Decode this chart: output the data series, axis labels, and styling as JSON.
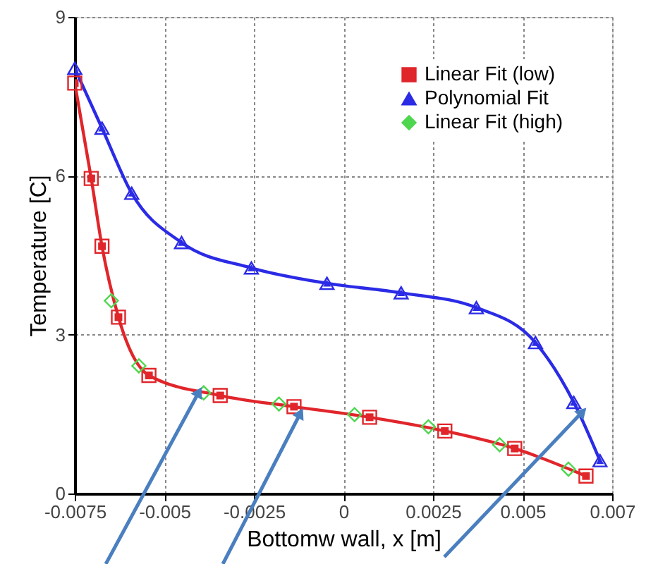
{
  "chart_data": {
    "type": "line",
    "xlabel": "Bottomw wall, x [m]",
    "ylabel": "Temperature [C]",
    "xlim": [
      -0.0075,
      0.0075
    ],
    "xticks": [
      {
        "value": -0.0075,
        "label": "-0.0075"
      },
      {
        "value": -0.005,
        "label": "-0.005"
      },
      {
        "value": -0.0025,
        "label": "-0.0025"
      },
      {
        "value": 0,
        "label": "0"
      },
      {
        "value": 0.0025,
        "label": "0.0025"
      },
      {
        "value": 0.005,
        "label": "0.005"
      },
      {
        "value": 0.0075,
        "label": "0.007"
      }
    ],
    "ylim": [
      0,
      9
    ],
    "yticks": [
      0,
      3,
      6,
      9
    ],
    "grid": true,
    "legend": "top right",
    "line_style": "solid",
    "series": [
      {
        "name": "Linear Fit (low)",
        "marker": "square",
        "color": "#e0262b",
        "x": [
          -0.0075,
          -0.00704,
          -0.00674,
          -0.00628,
          -0.00543,
          -0.00344,
          -0.00138,
          0.00073,
          0.00283,
          0.00478,
          0.00677
        ],
        "values": [
          7.75,
          5.95,
          4.67,
          3.33,
          2.23,
          1.85,
          1.64,
          1.44,
          1.18,
          0.85,
          0.33
        ]
      },
      {
        "name": "Polynomial Fit",
        "marker": "triangle",
        "color": "#2b2be6",
        "x": [
          -0.0075,
          -0.00674,
          -0.00591,
          -0.00452,
          -0.00257,
          -0.00046,
          0.00161,
          0.00371,
          0.00536,
          0.00643,
          0.00716
        ],
        "values": [
          8.03,
          6.9,
          5.67,
          4.74,
          4.26,
          3.97,
          3.79,
          3.51,
          2.85,
          1.72,
          0.62
        ]
      },
      {
        "name": "Linear Fit (high)",
        "type": "scatter",
        "marker": "diamond",
        "color": "#4fd64f",
        "x": [
          -0.00648,
          -0.00571,
          -0.0039,
          -0.0018,
          0.00031,
          0.00237,
          0.00436,
          0.00628
        ],
        "values": [
          3.64,
          2.41,
          1.9,
          1.69,
          1.49,
          1.26,
          0.92,
          0.46
        ]
      }
    ]
  }
}
